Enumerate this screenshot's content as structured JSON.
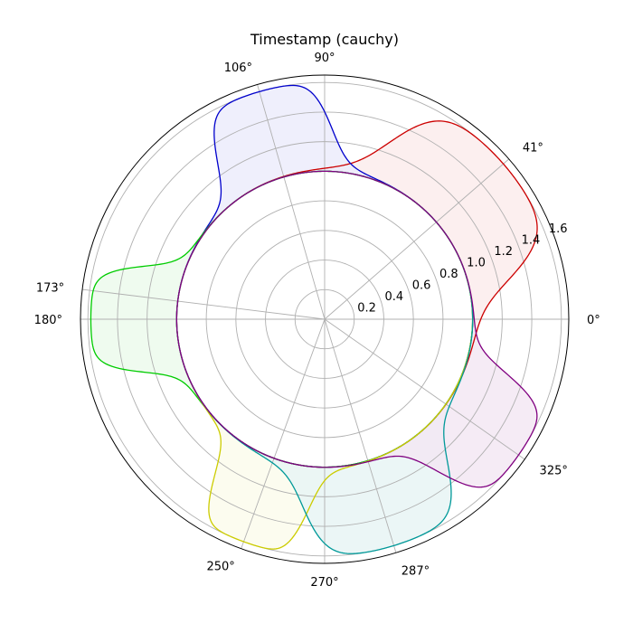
{
  "chart_data": {
    "type": "polar-area",
    "title": "Timestamp (cauchy)",
    "radial_ticks": [
      0.2,
      0.4,
      0.6,
      0.8,
      1.0,
      1.2,
      1.4,
      1.6
    ],
    "radial_tick_labels": [
      "0.2",
      "0.4",
      "0.6",
      "0.8",
      "1.0",
      "1.2",
      "1.4",
      "1.6"
    ],
    "rmax": 1.65,
    "baseline_radius": 1.0,
    "angular_ticks_deg": [
      0,
      41,
      90,
      106,
      173,
      180,
      250,
      270,
      287,
      325
    ],
    "angular_tick_labels": [
      "0°",
      "41°",
      "90°",
      "106°",
      "173°",
      "180°",
      "250°",
      "270°",
      "287°",
      "325°"
    ],
    "grid": true,
    "series": [
      {
        "color": "#cc0000",
        "fill": "#fbecec",
        "peak_deg": 41,
        "peak_r": 1.6,
        "half_width_deg": 28
      },
      {
        "color": "#0000cc",
        "fill": "#ececfb",
        "peak_deg": 106,
        "peak_r": 1.6,
        "half_width_deg": 18
      },
      {
        "color": "#00cc00",
        "fill": "#ecfaec",
        "peak_deg": 180,
        "peak_r": 1.58,
        "half_width_deg": 16
      },
      {
        "color": "#cccc00",
        "fill": "#fbfbec",
        "peak_deg": 250,
        "peak_r": 1.6,
        "half_width_deg": 15
      },
      {
        "color": "#009999",
        "fill": "#e8f5f5",
        "peak_deg": 287,
        "peak_r": 1.6,
        "half_width_deg": 23
      },
      {
        "color": "#800080",
        "fill": "#f3e8f3",
        "peak_deg": 325,
        "peak_r": 1.6,
        "half_width_deg": 18
      }
    ]
  }
}
